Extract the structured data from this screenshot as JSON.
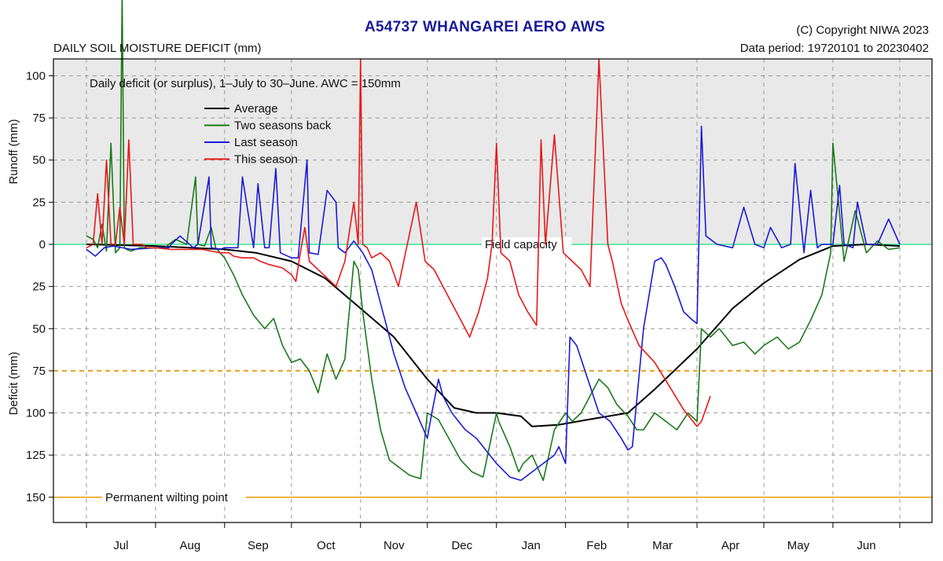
{
  "header": {
    "title": "A54737  WHANGAREI AERO AWS",
    "subtitle": "DAILY SOIL MOISTURE DEFICIT (mm)",
    "copyright": "(C) Copyright NIWA  2023",
    "data_period": "Data period:  19720101  to  20230402"
  },
  "chart_data": {
    "type": "line",
    "annotation": "Daily deficit (or surplus), 1–July to 30–June.  AWC = 150mm",
    "x_range": [
      0,
      365
    ],
    "y_range": [
      -110,
      165
    ],
    "y_top_label": "Runoff (mm)",
    "y_bottom_label": "Deficit (mm)",
    "y_ticks": [
      {
        "value": -100,
        "label": "100"
      },
      {
        "value": -75,
        "label": "75"
      },
      {
        "value": -50,
        "label": "50"
      },
      {
        "value": -25,
        "label": "25"
      },
      {
        "value": 0,
        "label": "0"
      },
      {
        "value": 25,
        "label": "25"
      },
      {
        "value": 50,
        "label": "50"
      },
      {
        "value": 75,
        "label": "75"
      },
      {
        "value": 100,
        "label": "100"
      },
      {
        "value": 125,
        "label": "125"
      },
      {
        "value": 150,
        "label": "150"
      }
    ],
    "month_boundaries": [
      0,
      31,
      62,
      92,
      123,
      153,
      184,
      215,
      243,
      274,
      304,
      335,
      365
    ],
    "month_labels": [
      "Jul",
      "Aug",
      "Sep",
      "Oct",
      "Nov",
      "Dec",
      "Jan",
      "Feb",
      "Mar",
      "Apr",
      "May",
      "Jun"
    ],
    "reference_lines": [
      {
        "name": "field-capacity",
        "value": 0,
        "label": "Field capacity",
        "color": "#66e8a8"
      },
      {
        "name": "half-awc",
        "value": 75,
        "label": "",
        "color": "#e8a020"
      },
      {
        "name": "wilting-point",
        "value": 150,
        "label": "Permanent wilting point",
        "color": "#f0b040"
      }
    ],
    "legend_position": "top-left",
    "grid": true,
    "series": [
      {
        "name": "Average",
        "color": "#000000",
        "x": [
          0,
          31,
          62,
          76,
          92,
          107,
          123,
          138,
          153,
          165,
          175,
          184,
          195,
          200,
          212,
          225,
          243,
          255,
          274,
          290,
          304,
          320,
          335,
          350,
          365
        ],
        "y": [
          0,
          1,
          3,
          5,
          10,
          20,
          38,
          55,
          80,
          97,
          100,
          100,
          102,
          108,
          107,
          104,
          100,
          86,
          62,
          38,
          23,
          9,
          1,
          0,
          1
        ]
      },
      {
        "name": "Two seasons back",
        "color": "#1a7a1a",
        "x": [
          0,
          3,
          5,
          7,
          9,
          11,
          13,
          15,
          16,
          17,
          18,
          20,
          24,
          28,
          31,
          35,
          40,
          45,
          49,
          50,
          53,
          56,
          58,
          60,
          62,
          66,
          70,
          75,
          80,
          84,
          88,
          92,
          96,
          100,
          104,
          108,
          112,
          116,
          120,
          122,
          124,
          126,
          128,
          132,
          136,
          140,
          145,
          150,
          153,
          158,
          163,
          168,
          173,
          178,
          184,
          185,
          190,
          194,
          196,
          200,
          205,
          210,
          215,
          218,
          222,
          226,
          230,
          234,
          238,
          243,
          247,
          250,
          255,
          260,
          265,
          270,
          274,
          276,
          280,
          284,
          290,
          295,
          300,
          304,
          310,
          315,
          320,
          325,
          330,
          334,
          335,
          340,
          345,
          350,
          355,
          360,
          365
        ],
        "y": [
          -5,
          -3,
          2,
          -12,
          4,
          -60,
          5,
          2,
          -150,
          2,
          3,
          4,
          2,
          2,
          2,
          2,
          -3,
          0,
          -40,
          0,
          1,
          -10,
          2,
          5,
          8,
          18,
          30,
          42,
          50,
          44,
          60,
          70,
          68,
          75,
          88,
          65,
          80,
          68,
          10,
          15,
          40,
          60,
          80,
          110,
          128,
          132,
          137,
          139,
          100,
          104,
          116,
          128,
          135,
          138,
          100,
          105,
          120,
          135,
          130,
          125,
          140,
          110,
          100,
          105,
          100,
          90,
          80,
          85,
          95,
          102,
          110,
          110,
          100,
          105,
          110,
          100,
          105,
          50,
          55,
          50,
          60,
          58,
          65,
          60,
          55,
          62,
          58,
          45,
          30,
          5,
          -60,
          10,
          -20,
          5,
          -2,
          3,
          2
        ]
      },
      {
        "name": "Last season",
        "color": "#1a1ad8",
        "x": [
          0,
          4,
          8,
          12,
          20,
          31,
          37,
          38,
          42,
          48,
          50,
          55,
          56,
          60,
          62,
          68,
          70,
          75,
          77,
          80,
          82,
          85,
          87,
          92,
          95,
          99,
          100,
          104,
          108,
          112,
          113,
          116,
          120,
          124,
          128,
          133,
          138,
          143,
          148,
          153,
          155,
          158,
          160,
          164,
          170,
          175,
          184,
          190,
          195,
          200,
          205,
          210,
          212,
          215,
          217,
          220,
          225,
          230,
          235,
          240,
          243,
          245,
          250,
          255,
          258,
          260,
          264,
          268,
          272,
          274,
          276,
          278,
          283,
          290,
          295,
          300,
          304,
          307,
          312,
          316,
          318,
          322,
          325,
          328,
          330,
          335,
          338,
          340,
          344,
          346,
          350,
          355,
          360,
          365
        ],
        "y": [
          3,
          7,
          2,
          1,
          3,
          2,
          2,
          0,
          -5,
          2,
          0,
          -40,
          2,
          3,
          2,
          2,
          -40,
          2,
          -36,
          2,
          2,
          -45,
          5,
          8,
          8,
          -50,
          5,
          6,
          -32,
          -25,
          2,
          5,
          -2,
          5,
          15,
          40,
          65,
          85,
          100,
          115,
          100,
          80,
          90,
          100,
          110,
          115,
          130,
          138,
          140,
          135,
          130,
          125,
          120,
          130,
          55,
          60,
          80,
          100,
          105,
          115,
          122,
          120,
          50,
          10,
          8,
          12,
          25,
          40,
          45,
          47,
          -70,
          -5,
          0,
          2,
          -22,
          0,
          2,
          -10,
          2,
          0,
          -48,
          5,
          -32,
          2,
          0,
          0,
          -35,
          0,
          2,
          -25,
          0,
          0,
          -15,
          0
        ]
      },
      {
        "name": "This season",
        "color": "#e81818",
        "x": [
          0,
          3,
          5,
          7,
          9,
          11,
          13,
          15,
          17,
          19,
          21,
          23,
          25,
          27,
          31,
          38,
          45,
          52,
          60,
          64,
          66,
          70,
          75,
          78,
          82,
          88,
          92,
          94,
          96,
          98,
          100,
          104,
          108,
          112,
          116,
          120,
          122,
          123,
          124,
          126,
          128,
          132,
          136,
          140,
          144,
          148,
          152,
          156,
          160,
          164,
          168,
          172,
          176,
          180,
          182,
          184,
          186,
          190,
          194,
          198,
          202,
          204,
          206,
          210,
          214,
          218,
          222,
          226,
          230,
          234,
          236,
          240,
          243,
          248,
          255,
          262,
          268,
          274,
          276,
          280
        ],
        "y": [
          2,
          0,
          -30,
          0,
          -50,
          0,
          0,
          -22,
          0,
          -62,
          0,
          0,
          0,
          2,
          2,
          3,
          3,
          3,
          5,
          5,
          7,
          8,
          8,
          10,
          12,
          14,
          18,
          22,
          5,
          -10,
          10,
          15,
          20,
          25,
          10,
          -25,
          0,
          -110,
          0,
          2,
          8,
          5,
          10,
          25,
          0,
          -25,
          10,
          15,
          25,
          35,
          45,
          55,
          40,
          20,
          0,
          -60,
          5,
          10,
          30,
          40,
          48,
          -62,
          0,
          -65,
          5,
          10,
          15,
          25,
          -110,
          0,
          10,
          35,
          45,
          60,
          70,
          85,
          98,
          108,
          105,
          90
        ]
      }
    ]
  }
}
